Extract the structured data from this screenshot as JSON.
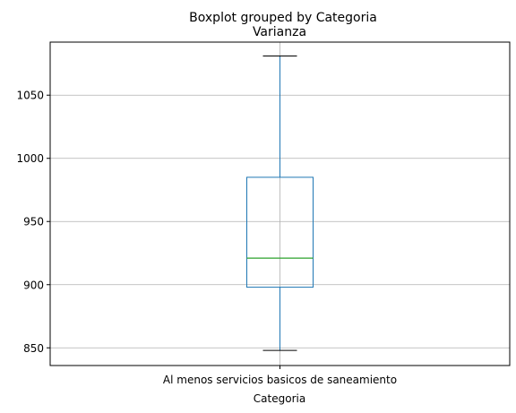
{
  "chart_data": {
    "type": "boxplot",
    "suptitle": "Boxplot grouped by Categoria",
    "title": "Varianza",
    "xlabel": "Categoria",
    "ylabel": "",
    "categories": [
      "Al menos servicios basicos de saneamiento"
    ],
    "boxes": [
      {
        "category": "Al menos servicios basicos de saneamiento",
        "whisker_low": 848,
        "q1": 898,
        "median": 921,
        "q3": 985,
        "whisker_high": 1081
      }
    ],
    "ylim": [
      836,
      1092
    ],
    "yticks": [
      850,
      900,
      950,
      1000,
      1050
    ],
    "grid": true,
    "colors": {
      "box": "#1f77b4",
      "median": "#2ca02c",
      "caps": "#000000",
      "grid": "#b0b0b0"
    }
  }
}
